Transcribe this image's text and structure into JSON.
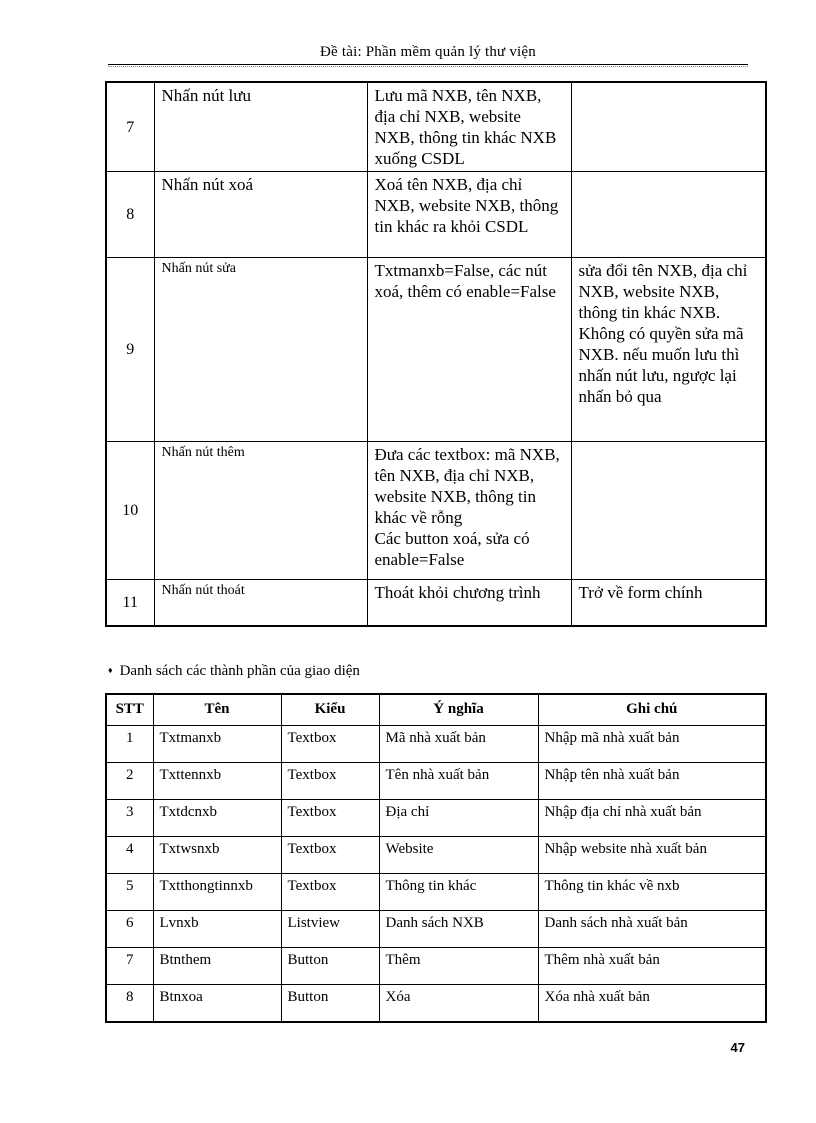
{
  "header": {
    "title": "Đề tài: Phần mềm quản lý thư  viện"
  },
  "table1": {
    "rows": [
      {
        "num": "7",
        "action": "Nhấn nút lưu",
        "desc": "Lưu mã NXB, tên NXB, địa chỉ NXB, website NXB, thông tin khác NXB xuống CSDL",
        "note": ""
      },
      {
        "num": "8",
        "action": "Nhấn nút xoá",
        "desc": "Xoá tên NXB, địa chỉ NXB, website NXB, thông tin khác ra khỏi CSDL",
        "note": ""
      },
      {
        "num": "9",
        "action": "Nhấn nút sửa",
        "desc": "Txtmanxb=False,  các nút xoá, thêm có enable=False",
        "note": "sửa đổi tên NXB, địa chỉ NXB, website NXB, thông tin khác NXB. Không có quyền sửa mã NXB. nếu muốn lưu thì nhấn nút lưu, ngược lại nhấn bỏ qua"
      },
      {
        "num": "10",
        "action": "Nhấn nút thêm",
        "desc": "Đưa các textbox:  mã NXB, tên NXB, địa chỉ NXB, website NXB, thông tin khác về rỗng\nCác button xoá, sửa có enable=False",
        "note": ""
      },
      {
        "num": "11",
        "action": "Nhấn nút thoát",
        "desc": "Thoát khỏi chương trình",
        "note": "Trở về form chính"
      }
    ]
  },
  "section": {
    "bullet": "♦",
    "title": "Danh sách các thành phần của giao diện"
  },
  "table2": {
    "headers": [
      "STT",
      "Tên",
      "Kiểu",
      "Ý nghĩa",
      "Ghi chú"
    ],
    "rows": [
      [
        "1",
        "Txtmanxb",
        "Textbox",
        "Mã nhà xuất bản",
        "Nhập mã nhà xuất bản"
      ],
      [
        "2",
        "Txttennxb",
        "Textbox",
        "Tên nhà xuất bản",
        "Nhập tên nhà xuất bản"
      ],
      [
        "3",
        "Txtdcnxb",
        "Textbox",
        "Địa chỉ",
        "Nhập địa chỉ nhà xuất bản"
      ],
      [
        "4",
        "Txtwsnxb",
        "Textbox",
        "Website",
        "Nhập website nhà xuất bản"
      ],
      [
        "5",
        "Txtthongtinnxb",
        "Textbox",
        "Thông tin khác",
        "Thông tin khác về nxb"
      ],
      [
        "6",
        "Lvnxb",
        "Listview",
        "Danh sách NXB",
        "Danh sách nhà xuất bản"
      ],
      [
        "7",
        "Btnthem",
        "Button",
        "Thêm",
        "Thêm nhà xuất bản"
      ],
      [
        "8",
        "Btnxoa",
        "Button",
        "Xóa",
        "Xóa nhà xuất bản"
      ]
    ]
  },
  "footer": {
    "page_number": "47"
  }
}
